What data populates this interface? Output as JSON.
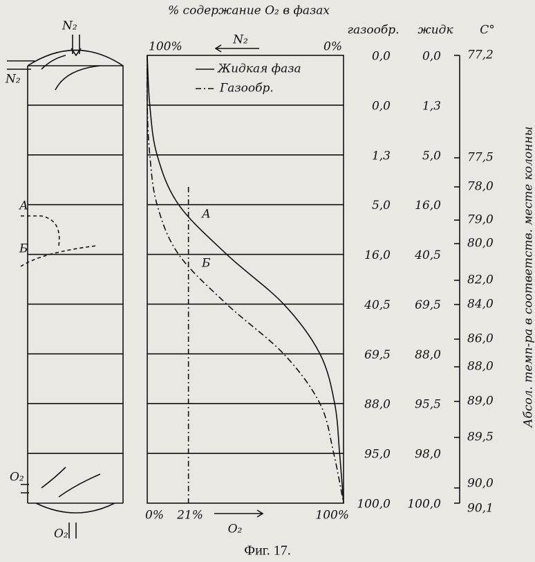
{
  "header": {
    "title": "% содержание O₂ в фазах",
    "gas_header": "газообр.",
    "liquid_header": "жидк",
    "temp_header": "C°"
  },
  "axis": {
    "top_left": "100%",
    "top_mid": "N₂",
    "top_right": "0%",
    "bottom_left": "0%",
    "bottom_21": "21%",
    "bottom_mid": "O₂",
    "bottom_right": "100%",
    "marker_21": 21
  },
  "legend": {
    "liquid": "Жидкая фаза",
    "gas": "Газообр."
  },
  "points": {
    "a": "А",
    "b": "Б"
  },
  "column": {
    "n2_top": "N₂",
    "n2_side": "N₂",
    "a": "А",
    "b": "Б",
    "o2_side": "O₂",
    "o2_bottom": "O₂"
  },
  "table": {
    "gas_values": [
      0,
      0,
      1.3,
      5,
      16,
      40.5,
      69.5,
      88,
      95,
      100
    ],
    "gas_labels": [
      "0,0",
      "0,0",
      "1,3",
      "5,0",
      "16,0",
      "40,5",
      "69,5",
      "88,0",
      "95,0",
      "100,0"
    ],
    "liquid_values": [
      0,
      1.3,
      5,
      16,
      40.5,
      69.5,
      88,
      95.5,
      98,
      100
    ],
    "liquid_labels": [
      "0,0",
      "1,3",
      "5,0",
      "16,0",
      "40,5",
      "69,5",
      "88,0",
      "95,5",
      "98,0",
      "100,0"
    ]
  },
  "temperature": {
    "values": [
      77.2,
      77.5,
      78,
      79,
      80,
      82,
      84,
      86,
      88,
      89,
      89.5,
      90,
      90.1
    ],
    "labels": [
      "77,2",
      "77,5",
      "78,0",
      "79,0",
      "80,0",
      "82,0",
      "84,0",
      "86,0",
      "88,0",
      "89,0",
      "89,5",
      "90,0",
      "90,1"
    ],
    "axis_label": "Абсол. темп-ра в соответств. месте колонны"
  },
  "caption": "Фиг. 17."
}
